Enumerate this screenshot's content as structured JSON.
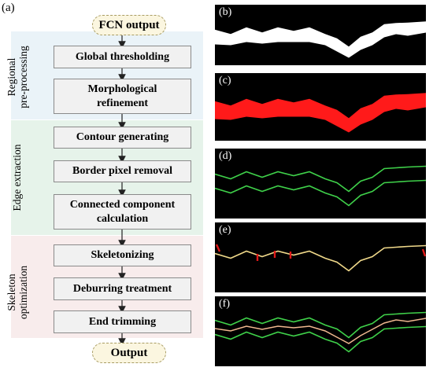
{
  "figure_label": "(a)",
  "sections": [
    {
      "title_line1": "Regional",
      "title_line2": "pre-processing"
    },
    {
      "title_line1": "Edge extraction",
      "title_line2": ""
    },
    {
      "title_line1": "Skeleton",
      "title_line2": "optimization"
    }
  ],
  "start_label": "FCN output",
  "end_label": "Output",
  "steps": [
    {
      "line1": "Global thresholding",
      "line2": ""
    },
    {
      "line1": "Morphological",
      "line2": "refinement"
    },
    {
      "line1": "Contour generating",
      "line2": ""
    },
    {
      "line1": "Border pixel removal",
      "line2": ""
    },
    {
      "line1": "Connected component",
      "line2": "calculation"
    },
    {
      "line1": "Skeletonizing",
      "line2": ""
    },
    {
      "line1": "Deburring treatment",
      "line2": ""
    },
    {
      "line1": "End trimming",
      "line2": ""
    }
  ],
  "panels": [
    {
      "label": "(b)",
      "fill_color": "#ffffff"
    },
    {
      "label": "(c)",
      "fill_color": "#ff1a1a"
    },
    {
      "label": "(d)",
      "edge_color": "#3fd14a"
    },
    {
      "label": "(e)",
      "skeleton_color": "#f0d98a",
      "burr_color": "#e01818"
    },
    {
      "label": "(f)",
      "edge_color": "#3fd14a",
      "skeleton_color": "#f0b890"
    }
  ]
}
